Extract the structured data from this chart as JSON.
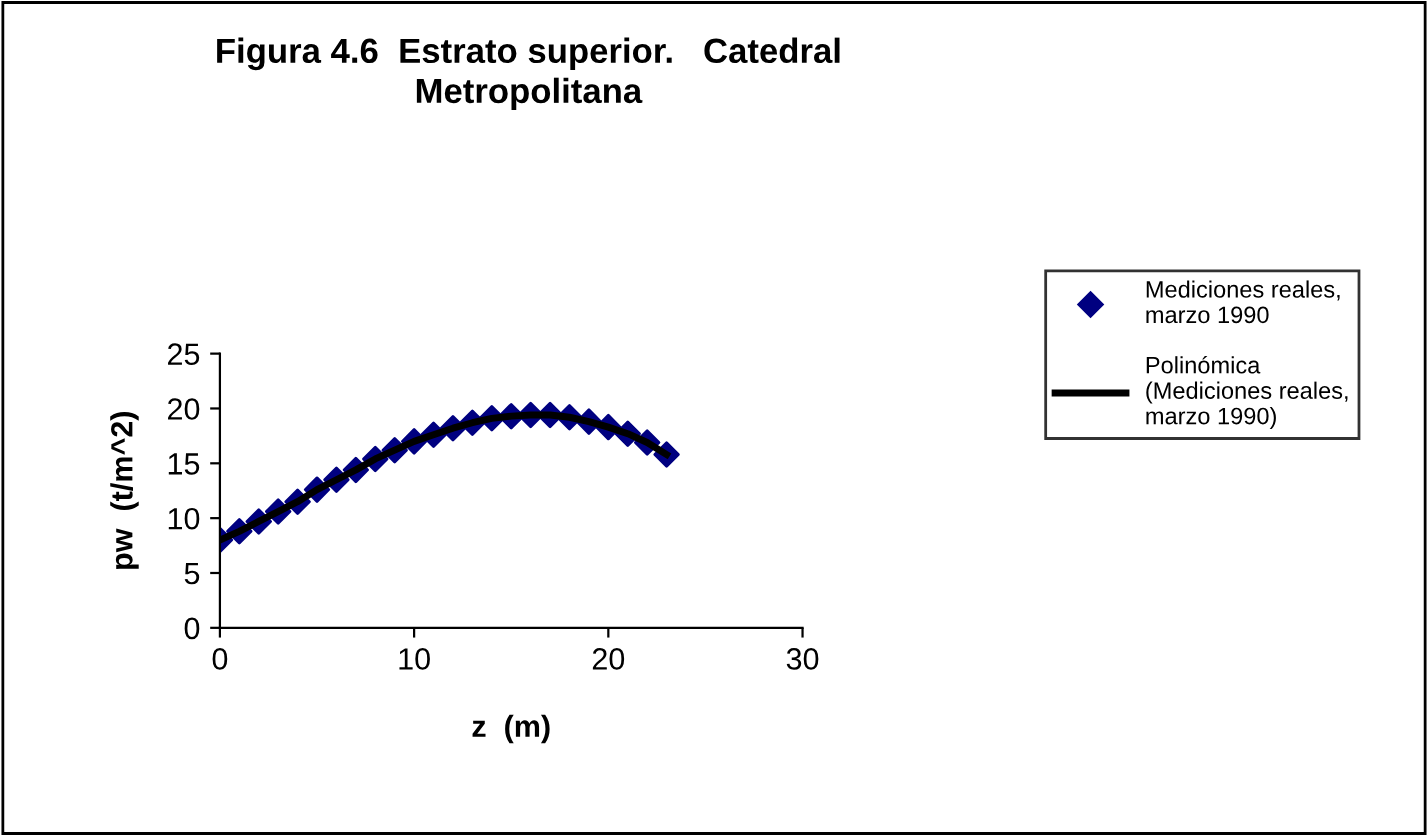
{
  "chart_data": {
    "type": "scatter",
    "title": "Figura 4.6  Estrato superior.   Catedral\nMetropolitana",
    "xlabel": "z  (m)",
    "ylabel": "pw  (t/m^2)",
    "x": [
      0,
      1,
      2,
      3,
      4,
      5,
      6,
      7,
      8,
      9,
      10,
      11,
      12,
      13,
      14,
      15,
      16,
      17,
      18,
      19,
      20,
      21,
      22,
      23
    ],
    "series": [
      {
        "name": "Mediciones reales,\nmarzo 1990",
        "marker": "diamond",
        "color": "#000080",
        "values": [
          8.0,
          8.8,
          9.7,
          10.6,
          11.5,
          12.6,
          13.5,
          14.4,
          15.4,
          16.2,
          17.0,
          17.6,
          18.2,
          18.7,
          19.1,
          19.3,
          19.4,
          19.4,
          19.2,
          18.8,
          18.3,
          17.7,
          16.9,
          15.8
        ]
      },
      {
        "name": "Polinómica\n(Mediciones reales,\nmarzo 1990)",
        "type": "line",
        "marker": "none",
        "color": "#000000",
        "values": [
          8.0,
          8.8,
          9.7,
          10.6,
          11.5,
          12.6,
          13.5,
          14.4,
          15.4,
          16.2,
          17.0,
          17.6,
          18.2,
          18.7,
          19.1,
          19.3,
          19.4,
          19.4,
          19.2,
          18.8,
          18.3,
          17.7,
          16.9,
          15.8
        ]
      }
    ],
    "xlim": [
      0,
      30
    ],
    "xticks": [
      0,
      10,
      20,
      30
    ],
    "ylim": [
      0,
      25
    ],
    "yticks": [
      0,
      5,
      10,
      15,
      20,
      25
    ],
    "grid": false,
    "legend": "right"
  }
}
